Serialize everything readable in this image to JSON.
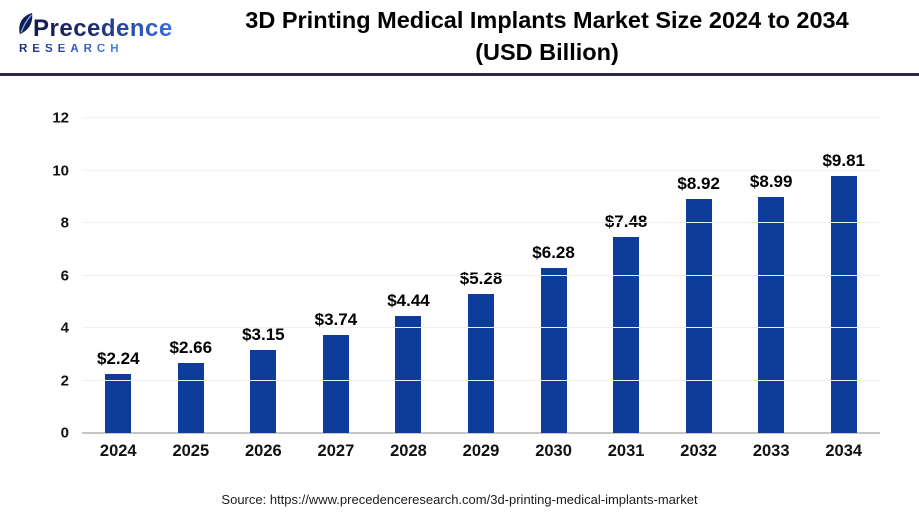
{
  "header": {
    "logo": {
      "wordmark": "Precedence",
      "subtext": "RESEARCH"
    },
    "title_line1": "3D Printing Medical Implants Market Size 2024 to 2034",
    "title_line2": "(USD Billion)"
  },
  "chart_data": {
    "type": "bar",
    "title": "3D Printing Medical Implants Market Size 2024 to 2034 (USD Billion)",
    "categories": [
      "2024",
      "2025",
      "2026",
      "2027",
      "2028",
      "2029",
      "2030",
      "2031",
      "2032",
      "2033",
      "2034"
    ],
    "values": [
      2.24,
      2.66,
      3.15,
      3.74,
      4.44,
      5.28,
      6.28,
      7.48,
      8.92,
      8.99,
      9.81
    ],
    "value_labels": [
      "$2.24",
      "$2.66",
      "$3.15",
      "$3.74",
      "$4.44",
      "$5.28",
      "$6.28",
      "$7.48",
      "$8.92",
      "$8.99",
      "$9.81"
    ],
    "xlabel": "",
    "ylabel": "",
    "ylim": [
      0,
      12
    ],
    "yticks": [
      0,
      2,
      4,
      6,
      8,
      10,
      12
    ],
    "grid": true,
    "legend": false,
    "bar_color": "#0d3c9b"
  },
  "footer": {
    "source": "Source: https://www.precedenceresearch.com/3d-printing-medical-implants-market"
  },
  "colors": {
    "bar": "#0d3c9b",
    "header_rule": "#2c2850",
    "gridline": "#f1f1f1",
    "axis_line": "#c6c6c6",
    "text": "#000000",
    "logo_dark": "#1d2a70",
    "logo_blue": "#2e59c9"
  }
}
